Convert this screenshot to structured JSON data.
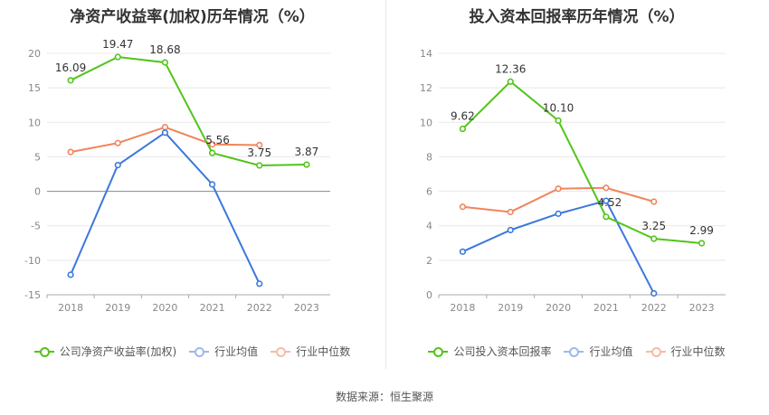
{
  "colors": {
    "company": "#52c41a",
    "industry_avg": "#3b78dc",
    "industry_median": "#f0845c"
  },
  "chart_data": [
    {
      "type": "line",
      "title": "净资产收益率(加权)历年情况（%）",
      "categories": [
        "2018",
        "2019",
        "2020",
        "2021",
        "2022",
        "2023"
      ],
      "y_ticks": [
        "20",
        "15",
        "10",
        "5",
        "0",
        "-5",
        "-10",
        "-15"
      ],
      "ylim": [
        -15,
        20
      ],
      "grid": true,
      "legend_position": "bottom",
      "series": [
        {
          "name": "公司净资产收益率(加权)",
          "key": "company",
          "values": [
            16.09,
            19.47,
            18.68,
            5.56,
            3.75,
            3.87
          ],
          "labels": [
            "16.09",
            "19.47",
            "18.68",
            "5.56",
            "3.75",
            "3.87"
          ]
        },
        {
          "name": "行业均值",
          "key": "industry_avg",
          "values": [
            -12.1,
            3.8,
            8.5,
            1.0,
            -13.4,
            null
          ]
        },
        {
          "name": "行业中位数",
          "key": "industry_median",
          "values": [
            5.7,
            7.0,
            9.3,
            6.8,
            6.7,
            null
          ]
        }
      ]
    },
    {
      "type": "line",
      "title": "投入资本回报率历年情况（%）",
      "categories": [
        "2018",
        "2019",
        "2020",
        "2021",
        "2022",
        "2023"
      ],
      "y_ticks": [
        "14",
        "12",
        "10",
        "8",
        "6",
        "4",
        "2",
        "0"
      ],
      "ylim": [
        0,
        14
      ],
      "grid": true,
      "legend_position": "bottom",
      "series": [
        {
          "name": "公司投入资本回报率",
          "key": "company",
          "values": [
            9.62,
            12.36,
            10.1,
            4.52,
            3.25,
            2.99
          ],
          "labels": [
            "9.62",
            "12.36",
            "10.10",
            "4.52",
            "3.25",
            "2.99"
          ]
        },
        {
          "name": "行业均值",
          "key": "industry_avg",
          "values": [
            2.5,
            3.75,
            4.7,
            5.45,
            0.08,
            null
          ]
        },
        {
          "name": "行业中位数",
          "key": "industry_median",
          "values": [
            5.1,
            4.8,
            6.15,
            6.2,
            5.4,
            null
          ]
        }
      ]
    }
  ],
  "footer": {
    "source": "数据来源：恒生聚源"
  }
}
